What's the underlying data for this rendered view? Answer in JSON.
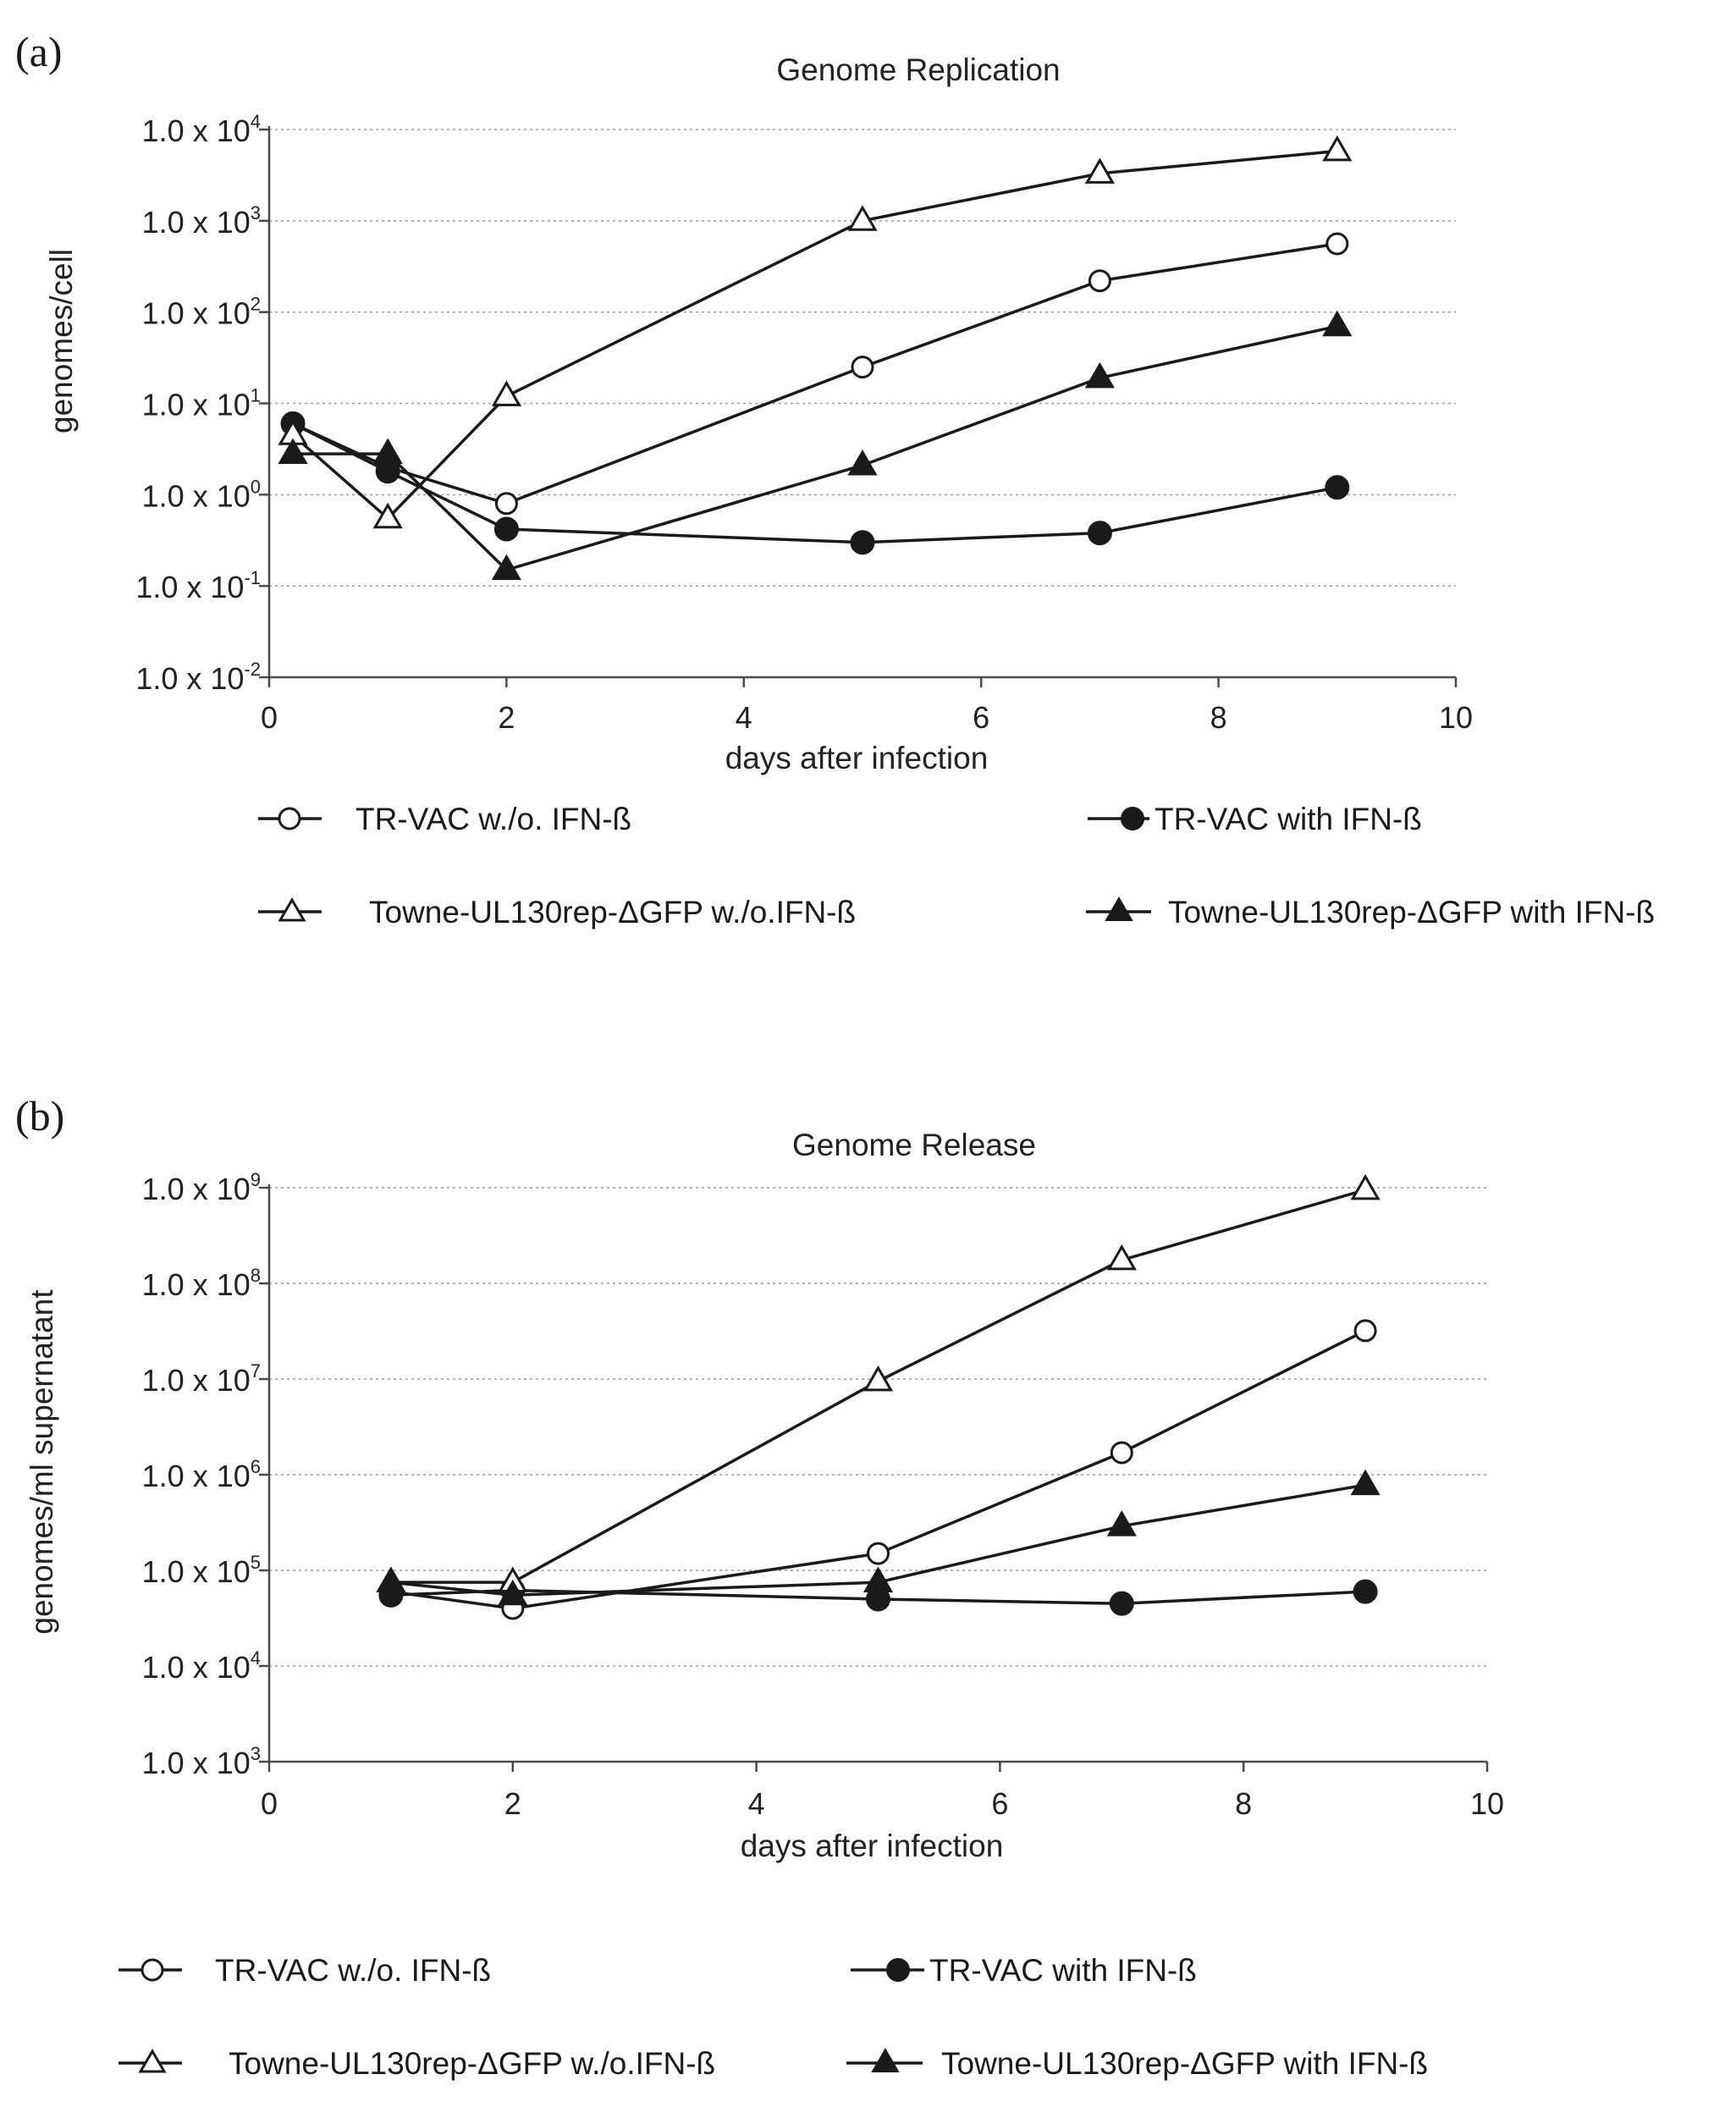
{
  "chart_data": [
    {
      "type": "line",
      "panel_label": "(a)",
      "title": "Genome Replication",
      "xlabel": "days after infection",
      "ylabel": "genomes/cell",
      "yscale": "log",
      "xlim": [
        0,
        10
      ],
      "ylim": [
        0.01,
        10000
      ],
      "xticks": [
        "0",
        "2",
        "4",
        "6",
        "8",
        "10"
      ],
      "yticks": [
        {
          "base": "1.0 x 10",
          "exp": "-2"
        },
        {
          "base": "1.0 x 10",
          "exp": "-1"
        },
        {
          "base": "1.0 x 10",
          "exp": "0"
        },
        {
          "base": "1.0 x 10",
          "exp": "1"
        },
        {
          "base": "1.0 x 10",
          "exp": "2"
        },
        {
          "base": "1.0 x 10",
          "exp": "3"
        },
        {
          "base": "1.0 x 10",
          "exp": "4"
        }
      ],
      "grid": true,
      "series": [
        {
          "name": "TR-VAC w./o. IFN-ß",
          "marker": "circle-open",
          "x": [
            0.2,
            1,
            2,
            5,
            7,
            9
          ],
          "y": [
            6,
            2,
            0.8,
            25,
            220,
            560
          ]
        },
        {
          "name": "TR-VAC with IFN-ß",
          "marker": "circle-filled",
          "x": [
            0.2,
            1,
            2,
            5,
            7,
            9
          ],
          "y": [
            6,
            1.8,
            0.42,
            0.3,
            0.38,
            1.2
          ]
        },
        {
          "name": "Towne-UL130rep-ΔGFP w./o.IFN-ß",
          "marker": "triangle-open",
          "x": [
            0.2,
            1,
            2,
            5,
            7,
            9
          ],
          "y": [
            4.5,
            0.55,
            12,
            1000,
            3300,
            5800
          ]
        },
        {
          "name": "Towne-UL130rep-ΔGFP with IFN-ß",
          "marker": "triangle-filled",
          "x": [
            0.2,
            1,
            2,
            5,
            7,
            9
          ],
          "y": [
            2.8,
            2.8,
            0.15,
            2.1,
            19,
            70
          ]
        }
      ]
    },
    {
      "type": "line",
      "panel_label": "(b)",
      "title": "Genome Release",
      "xlabel": "days after infection",
      "ylabel": "genomes/ml supernatant",
      "yscale": "log",
      "xlim": [
        0,
        10
      ],
      "ylim": [
        1000,
        1000000000
      ],
      "xticks": [
        "0",
        "2",
        "4",
        "6",
        "8",
        "10"
      ],
      "yticks": [
        {
          "base": "1.0 x 10",
          "exp": "3"
        },
        {
          "base": "1.0 x 10",
          "exp": "4"
        },
        {
          "base": "1.0 x 10",
          "exp": "5"
        },
        {
          "base": "1.0 x 10",
          "exp": "6"
        },
        {
          "base": "1.0 x 10",
          "exp": "7"
        },
        {
          "base": "1.0 x 10",
          "exp": "8"
        },
        {
          "base": "1.0 x 10",
          "exp": "9"
        }
      ],
      "grid": true,
      "series": [
        {
          "name": "TR-VAC w./o. IFN-ß",
          "marker": "circle-open",
          "x": [
            1,
            2,
            5,
            7,
            9
          ],
          "y": [
            60000,
            40000,
            150000,
            1700000,
            32000000
          ]
        },
        {
          "name": "TR-VAC with IFN-ß",
          "marker": "circle-filled",
          "x": [
            1,
            2,
            5,
            7,
            9
          ],
          "y": [
            55000,
            62000,
            50000,
            45000,
            60000
          ]
        },
        {
          "name": "Towne-UL130rep-ΔGFP w./o.IFN-ß",
          "marker": "triangle-open",
          "x": [
            1,
            2,
            5,
            7,
            9
          ],
          "y": [
            75000,
            75000,
            9500000,
            175000000,
            950000000
          ]
        },
        {
          "name": "Towne-UL130rep-ΔGFP with IFN-ß",
          "marker": "triangle-filled",
          "x": [
            1,
            2,
            5,
            7,
            9
          ],
          "y": [
            75000,
            55000,
            75000,
            290000,
            780000
          ]
        }
      ]
    }
  ]
}
